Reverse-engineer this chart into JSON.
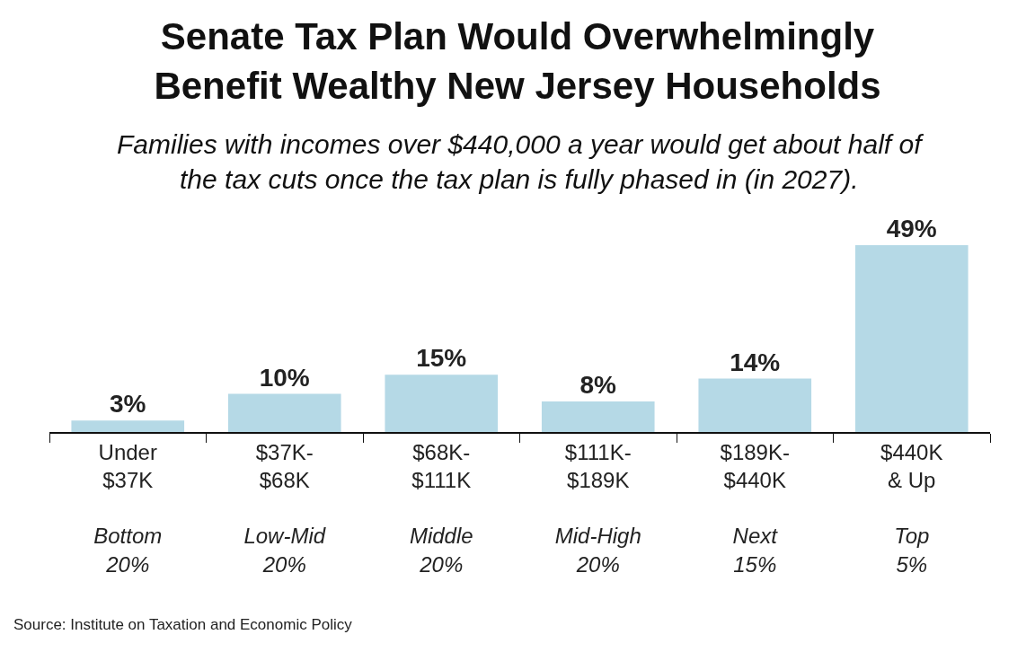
{
  "chart_data": {
    "type": "bar",
    "title": "Senate Tax Plan Would Overwhelmingly\nBenefit Wealthy New Jersey Households",
    "subtitle": "Families with incomes over $440,000 a year would get about half of\nthe tax cuts once the tax plan is fully phased in (in 2027).",
    "categories": [
      "Under\n$37K\n\nBottom\n20%",
      "$37K-\n$68K\n\nLow-Mid\n20%",
      "$68K-\n$111K\n\nMiddle\n20%",
      "$111K-\n$189K\n\nMid-High\n20%",
      "$189K-\n$440K\n\nNext\n15%",
      "$440K\n& Up\n\nTop\n5%"
    ],
    "values": [
      3,
      10,
      15,
      8,
      14,
      49
    ],
    "value_labels": [
      "3%",
      "10%",
      "15%",
      "8%",
      "14%",
      "49%"
    ],
    "color": "#b5d9e6",
    "annotations": [
      "Source: Institute on Taxation and Economic Policy"
    ]
  }
}
